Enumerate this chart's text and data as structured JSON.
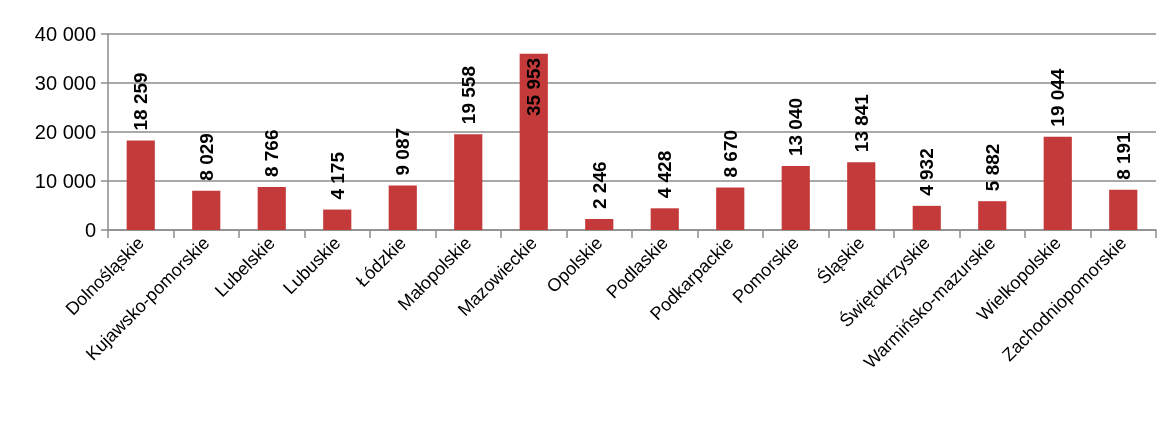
{
  "chart_data": {
    "type": "bar",
    "categories": [
      "Dolnośląskie",
      "Kujawsko-pomorskie",
      "Lubelskie",
      "Lubuskie",
      "Łódzkie",
      "Małopolskie",
      "Mazowieckie",
      "Opolskie",
      "Podlaskie",
      "Podkarpackie",
      "Pomorskie",
      "Śląskie",
      "Świętokrzyskie",
      "Warmińsko-mazurskie",
      "Wielkopolskie",
      "Zachodniopomorskie"
    ],
    "values": [
      18259,
      8029,
      8766,
      4175,
      9087,
      19558,
      35953,
      2246,
      4428,
      8670,
      13040,
      13841,
      4932,
      5882,
      19044,
      8191
    ],
    "value_labels": [
      "18 259",
      "8 029",
      "8 766",
      "4 175",
      "9 087",
      "19 558",
      "35 953",
      "2 246",
      "4 428",
      "8 670",
      "13 040",
      "13 841",
      "4 932",
      "5 882",
      "19 044",
      "8 191"
    ],
    "color": "#c43a3a",
    "ylim": [
      0,
      40000
    ],
    "yticks": [
      0,
      {
        "value": 10000,
        "label": "10 000"
      },
      {
        "value": 20000,
        "label": "20 000"
      },
      {
        "value": 30000,
        "label": "30 000"
      },
      {
        "value": 40000,
        "label": "40 000"
      }
    ],
    "grid": "y"
  }
}
